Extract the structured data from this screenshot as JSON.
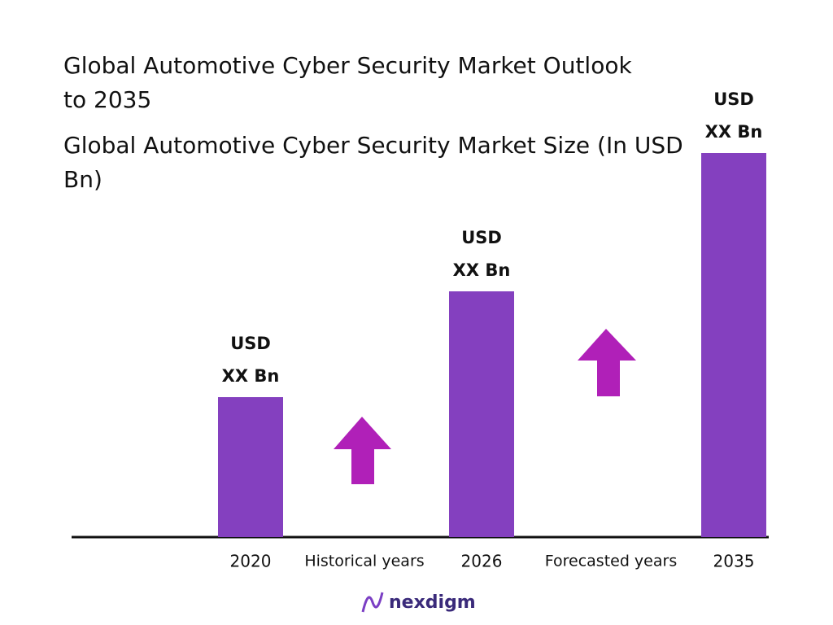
{
  "chart_data": {
    "type": "bar",
    "title": "Global Automotive Cyber Security Market Outlook to 2035",
    "subtitle": "Global Automotive Cyber Security Market Size (In USD Bn)",
    "categories": [
      "2020",
      "2026",
      "2035"
    ],
    "values": [
      172,
      302,
      472
    ],
    "value_labels": [
      [
        "USD",
        "XX Bn"
      ],
      [
        "USD",
        "XX Bn"
      ],
      [
        "USD",
        "XX Bn"
      ]
    ],
    "color": "#8440bf",
    "ylim": [
      0,
      472
    ],
    "annotations": [
      "Historical years",
      "Forecasted years"
    ]
  },
  "logo": "nexdigm"
}
